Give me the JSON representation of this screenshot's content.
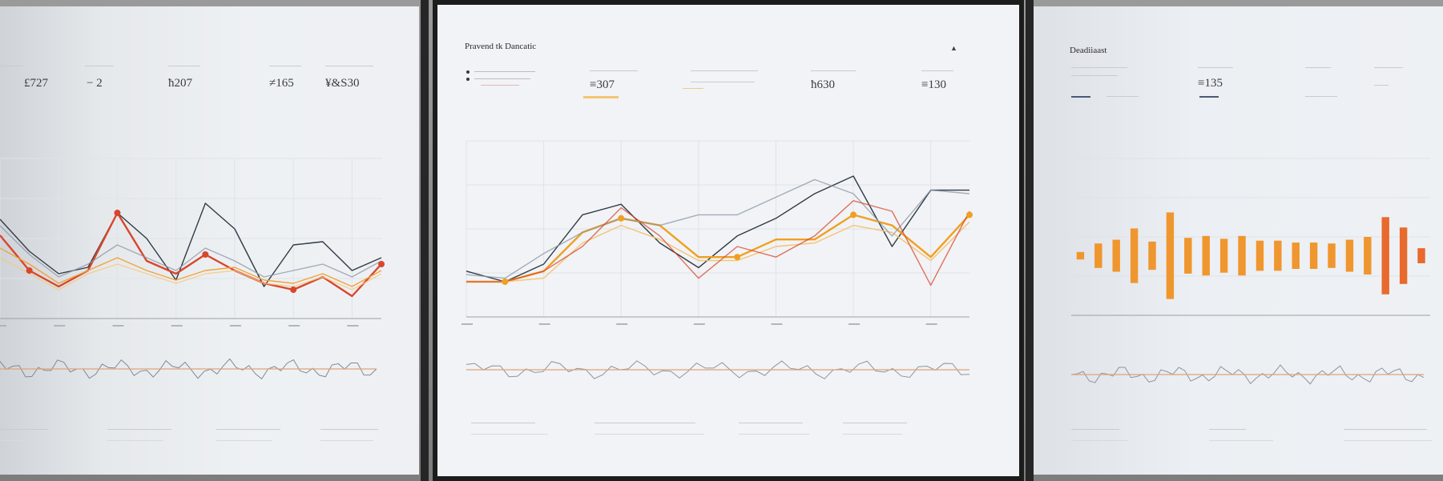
{
  "panels": {
    "left": {
      "kpis": [
        "£727",
        "− 2",
        "ħ207",
        "≠165",
        "¥&S30"
      ],
      "series_colors": [
        "#2f3a45",
        "#d9462b",
        "#f0a43a",
        "#f5c776",
        "#8a96a3"
      ]
    },
    "middle": {
      "title": "Pravend tk Dancatic",
      "kpis": [
        "≡307",
        "ħ630",
        "≡130"
      ],
      "series_colors": [
        "#2f3a45",
        "#f0a020",
        "#f4c472",
        "#8896a4",
        "#d9462b"
      ]
    },
    "right": {
      "title": "Deadiiaast",
      "kpis": [
        "≡135"
      ],
      "bar_color": "#f0962e"
    }
  },
  "chart_data": [
    {
      "type": "line",
      "title": "",
      "x": [
        0,
        1,
        2,
        3,
        4,
        5,
        6,
        7,
        8,
        9,
        10,
        11,
        12,
        13
      ],
      "series": [
        {
          "values": [
            62,
            42,
            28,
            32,
            66,
            50,
            24,
            72,
            56,
            20,
            46,
            48,
            30,
            38
          ]
        },
        {
          "values": [
            52,
            30,
            20,
            30,
            66,
            36,
            28,
            40,
            30,
            22,
            18,
            26,
            14,
            34
          ]
        },
        {
          "values": [
            44,
            34,
            22,
            30,
            38,
            30,
            24,
            30,
            32,
            24,
            22,
            28,
            20,
            30
          ]
        },
        {
          "values": [
            38,
            28,
            18,
            28,
            34,
            28,
            22,
            28,
            30,
            22,
            20,
            26,
            18,
            28
          ]
        },
        {
          "values": [
            58,
            40,
            26,
            34,
            46,
            38,
            30,
            44,
            36,
            26,
            30,
            34,
            26,
            36
          ]
        }
      ],
      "ylim": [
        0,
        100
      ]
    },
    {
      "type": "line",
      "title": "Pravend tk Dancatic",
      "x": [
        0,
        1,
        2,
        3,
        4,
        5,
        6,
        7,
        8,
        9,
        10,
        11,
        12,
        13
      ],
      "series": [
        {
          "values": [
            26,
            20,
            30,
            58,
            64,
            42,
            28,
            46,
            56,
            70,
            80,
            40,
            72,
            72
          ]
        },
        {
          "values": [
            20,
            20,
            26,
            48,
            56,
            52,
            34,
            34,
            44,
            44,
            58,
            52,
            34,
            58
          ]
        },
        {
          "values": [
            20,
            20,
            22,
            42,
            52,
            44,
            32,
            32,
            40,
            42,
            52,
            48,
            32,
            54
          ]
        },
        {
          "values": [
            24,
            22,
            36,
            48,
            56,
            52,
            58,
            58,
            68,
            78,
            70,
            46,
            72,
            70
          ]
        },
        {
          "values": [
            20,
            20,
            26,
            40,
            62,
            46,
            22,
            40,
            34,
            46,
            66,
            60,
            18,
            60
          ]
        }
      ],
      "ylim": [
        0,
        100
      ]
    },
    {
      "type": "bar",
      "title": "Deadiiaast",
      "categories": [
        "1",
        "2",
        "3",
        "4",
        "5",
        "6",
        "7",
        "8",
        "9",
        "10",
        "11",
        "12",
        "13",
        "14",
        "15",
        "16",
        "17",
        "18",
        "19",
        "20"
      ],
      "values": [
        8,
        26,
        34,
        58,
        30,
        92,
        38,
        42,
        36,
        42,
        32,
        32,
        28,
        28,
        26,
        34,
        40,
        82,
        60,
        16
      ],
      "ylim": [
        0,
        100
      ]
    }
  ]
}
